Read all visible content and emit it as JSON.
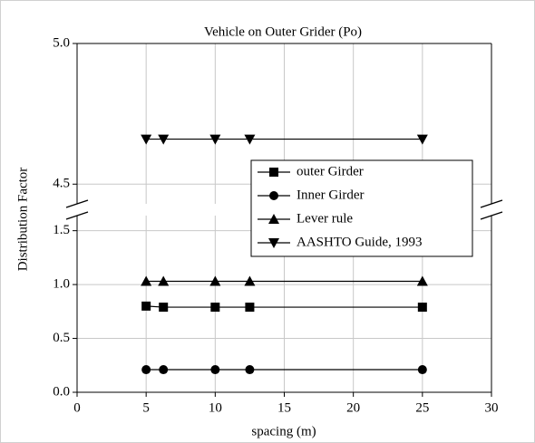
{
  "chart_data": {
    "type": "line",
    "title": "Vehicle on Outer Grider (Po)",
    "xlabel": "spacing (m)",
    "ylabel": "Distribution Factor",
    "x": [
      5,
      6.25,
      10,
      12.5,
      25
    ],
    "series": [
      {
        "name": "outer Girder",
        "color": "#000000",
        "marker": "square",
        "values": [
          0.8,
          0.79,
          0.79,
          0.79,
          0.79
        ]
      },
      {
        "name": "Inner Girder",
        "color": "#000000",
        "marker": "circle",
        "values": [
          0.21,
          0.21,
          0.21,
          0.21,
          0.21
        ]
      },
      {
        "name": "Lever rule",
        "color": "#000000",
        "marker": "triangle-up",
        "values": [
          1.03,
          1.03,
          1.03,
          1.03,
          1.03
        ]
      },
      {
        "name": "AASHTO Guide, 1993",
        "color": "#000000",
        "marker": "triangle-down",
        "values": [
          4.66,
          4.66,
          4.66,
          4.66,
          4.66
        ]
      }
    ],
    "xlim": [
      0,
      30
    ],
    "xticks": [
      0,
      5,
      10,
      15,
      20,
      25,
      30
    ],
    "ylim": [
      0,
      5.0
    ],
    "ybreak": [
      1.64,
      4.43
    ],
    "yticks": [
      {
        "value": 0,
        "label": "0.0"
      },
      0.5,
      {
        "value": 1,
        "label": "1.0"
      },
      1.5,
      4.5,
      {
        "value": 5,
        "label": "5.0"
      }
    ],
    "grid": true,
    "legend": "right"
  }
}
